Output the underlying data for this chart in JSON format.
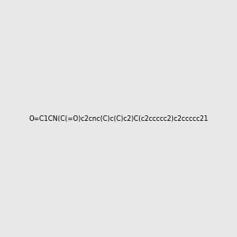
{
  "smiles": "O=C1CN(C(=O)c2cnc(C)c(C)c2)C(c2ccccc2)c2ccccc21",
  "background_color": "#e8e8e8",
  "image_size": 300,
  "title": ""
}
